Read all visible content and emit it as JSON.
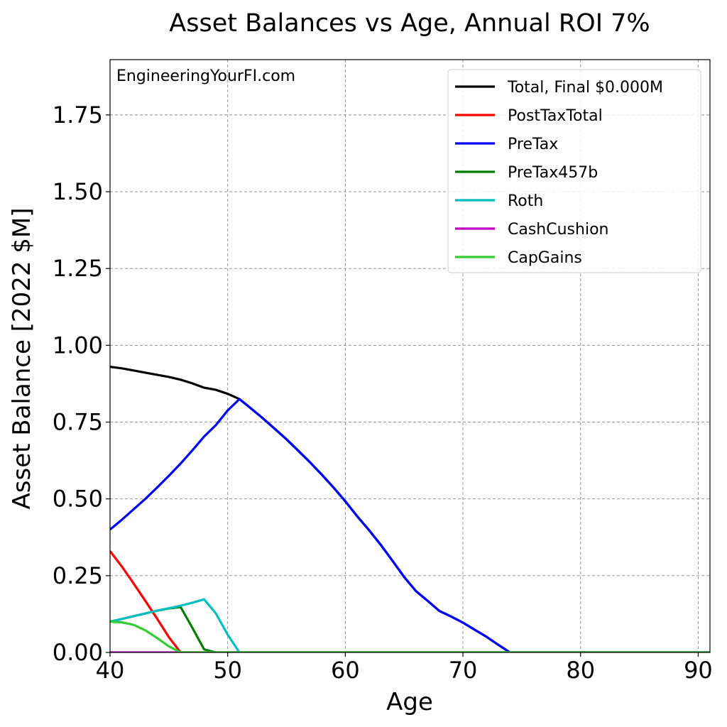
{
  "chart_data": {
    "type": "line",
    "title": "Asset Balances vs Age, Annual ROI 7%",
    "xlabel": "Age",
    "ylabel": "Asset Balance [2022 $M]",
    "annotation": "EngineeringYourFI.com",
    "xlim": [
      40,
      91
    ],
    "ylim": [
      0,
      1.93
    ],
    "xticks": [
      40,
      50,
      60,
      70,
      80,
      90
    ],
    "yticks": [
      0.0,
      0.25,
      0.5,
      0.75,
      1.0,
      1.25,
      1.5,
      1.75
    ],
    "xtick_labels": [
      "40",
      "50",
      "60",
      "70",
      "80",
      "90"
    ],
    "ytick_labels": [
      "0.00",
      "0.25",
      "0.50",
      "0.75",
      "1.00",
      "1.25",
      "1.50",
      "1.75"
    ],
    "grid": true,
    "legend_position": "top-right",
    "series": [
      {
        "name": "Total, Final $0.000M",
        "color": "#000000",
        "x": [
          40,
          41,
          42,
          43,
          44,
          45,
          46,
          47,
          48,
          49,
          50,
          51,
          52,
          53,
          54,
          55,
          56,
          57,
          58,
          59,
          60,
          61,
          62,
          63,
          64,
          65,
          66,
          67,
          68,
          69,
          70,
          71,
          72,
          73,
          74,
          91
        ],
        "y": [
          0.93,
          0.925,
          0.918,
          0.911,
          0.904,
          0.897,
          0.888,
          0.876,
          0.862,
          0.855,
          0.842,
          0.825,
          0.794,
          0.762,
          0.728,
          0.694,
          0.657,
          0.619,
          0.579,
          0.537,
          0.492,
          0.444,
          0.399,
          0.351,
          0.299,
          0.246,
          0.2,
          0.168,
          0.135,
          0.117,
          0.097,
          0.074,
          0.051,
          0.025,
          0.0,
          0.0
        ]
      },
      {
        "name": "PostTaxTotal",
        "color": "#ff0000",
        "x": [
          40,
          41,
          42,
          43,
          44,
          45,
          46,
          91
        ],
        "y": [
          0.33,
          0.28,
          0.225,
          0.168,
          0.11,
          0.05,
          0.0,
          0.0
        ]
      },
      {
        "name": "PreTax",
        "color": "#0000ff",
        "x": [
          40,
          41,
          42,
          43,
          44,
          45,
          46,
          47,
          48,
          49,
          50,
          51,
          52,
          53,
          54,
          55,
          56,
          57,
          58,
          59,
          60,
          61,
          62,
          63,
          64,
          65,
          66,
          67,
          68,
          69,
          70,
          71,
          72,
          73,
          74,
          91
        ],
        "y": [
          0.4,
          0.432,
          0.466,
          0.5,
          0.537,
          0.575,
          0.615,
          0.658,
          0.703,
          0.74,
          0.788,
          0.825,
          0.794,
          0.762,
          0.728,
          0.694,
          0.657,
          0.619,
          0.579,
          0.537,
          0.492,
          0.444,
          0.399,
          0.351,
          0.299,
          0.246,
          0.2,
          0.168,
          0.135,
          0.117,
          0.097,
          0.074,
          0.051,
          0.025,
          0.0,
          0.0
        ]
      },
      {
        "name": "PreTax457b",
        "color": "#008000",
        "x": [
          40,
          41,
          42,
          43,
          44,
          45,
          46,
          47,
          48,
          49,
          91
        ],
        "y": [
          0.1,
          0.109,
          0.118,
          0.127,
          0.136,
          0.143,
          0.148,
          0.08,
          0.01,
          0.0,
          0.0
        ]
      },
      {
        "name": "Roth",
        "color": "#00bfbf",
        "x": [
          40,
          41,
          42,
          43,
          44,
          45,
          46,
          47,
          48,
          49,
          50,
          51,
          91
        ],
        "y": [
          0.1,
          0.109,
          0.118,
          0.127,
          0.136,
          0.144,
          0.152,
          0.162,
          0.173,
          0.127,
          0.058,
          0.0,
          0.0
        ]
      },
      {
        "name": "CashCushion",
        "color": "#bf00bf",
        "x": [
          40,
          91
        ],
        "y": [
          0.0,
          0.0
        ]
      },
      {
        "name": "CapGains",
        "color": "#33cc33",
        "x": [
          40,
          41,
          42,
          43,
          44,
          45,
          46,
          91
        ],
        "y": [
          0.1,
          0.098,
          0.09,
          0.072,
          0.047,
          0.02,
          0.0,
          0.0
        ]
      }
    ]
  }
}
